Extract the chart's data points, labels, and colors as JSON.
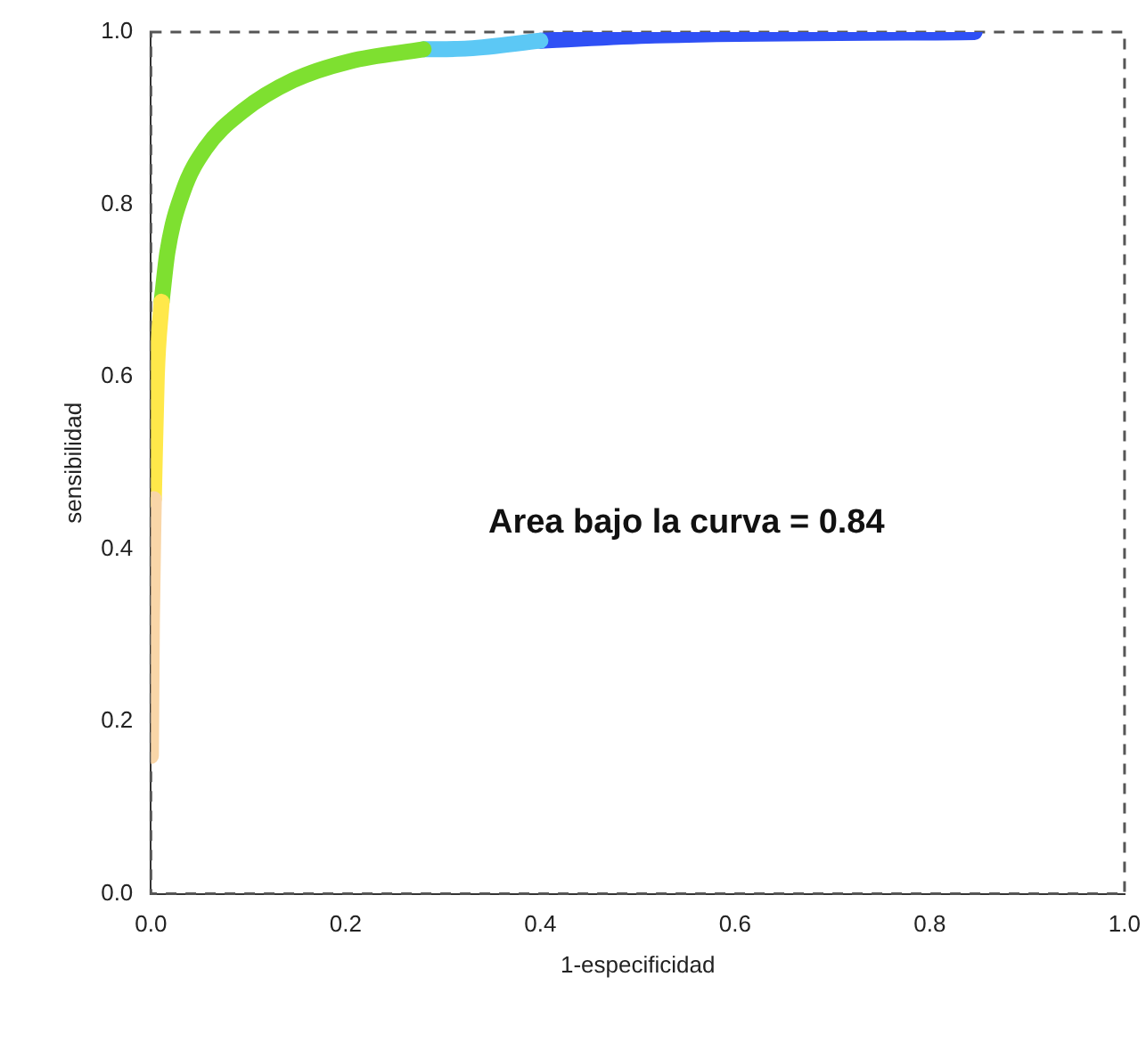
{
  "chart_data": {
    "type": "line",
    "xlabel": "1-especificidad",
    "ylabel": "sensibilidad",
    "annotations": [
      "Area bajo la curva = 0.84"
    ],
    "xlim": [
      0,
      1
    ],
    "ylim": [
      0,
      1
    ],
    "xticks": [
      {
        "value": 0,
        "label": "0.0"
      },
      {
        "value": 0.2,
        "label": "0.2"
      },
      {
        "value": 0.4,
        "label": "0.4"
      },
      {
        "value": 0.6,
        "label": "0.6"
      },
      {
        "value": 0.8,
        "label": "0.8"
      },
      {
        "value": 1,
        "label": "1.0"
      }
    ],
    "yticks": [
      {
        "value": 0,
        "label": "0.0"
      },
      {
        "value": 0.2,
        "label": "0.2"
      },
      {
        "value": 0.4,
        "label": "0.4"
      },
      {
        "value": 0.6,
        "label": "0.6"
      },
      {
        "value": 0.8,
        "label": "0.8"
      },
      {
        "value": 1,
        "label": "1.0"
      }
    ],
    "grid": false,
    "legend": false,
    "marker": "none",
    "line_style": "solid",
    "series": [
      {
        "x": [
          0,
          0.001,
          0.003
        ],
        "values": [
          0.16,
          0.315,
          0.458
        ],
        "color": "#f9d6a8"
      },
      {
        "x": [
          0.003,
          0.006,
          0.011
        ],
        "values": [
          0.458,
          0.6,
          0.687
        ],
        "color": "#ffe84a"
      },
      {
        "x": [
          0.011,
          0.017,
          0.033,
          0.056,
          0.094,
          0.146,
          0.204,
          0.28
        ],
        "values": [
          0.687,
          0.745,
          0.815,
          0.865,
          0.908,
          0.944,
          0.966,
          0.98
        ],
        "color": "#7ee030"
      },
      {
        "x": [
          0.28,
          0.326,
          0.4
        ],
        "values": [
          0.98,
          0.981,
          0.99
        ],
        "color": "#5cc8f5"
      },
      {
        "x": [
          0.4,
          0.518,
          0.846
        ],
        "values": [
          0.99,
          0.996,
          1.0
        ],
        "color": "#2f50f5"
      }
    ]
  }
}
